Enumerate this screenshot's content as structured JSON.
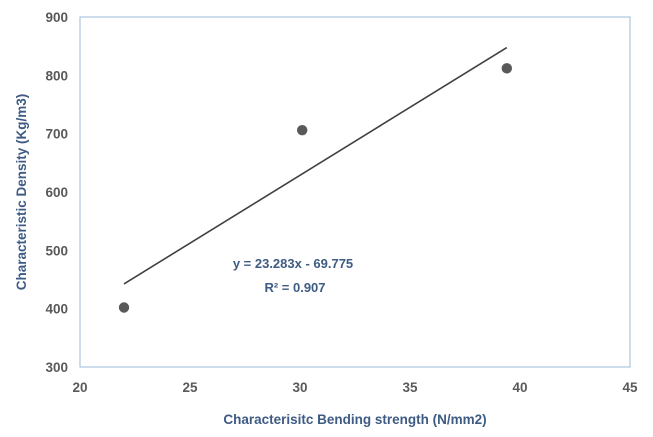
{
  "chart_data": {
    "type": "scatter",
    "title": "",
    "xlabel": "Characterisitc Bending strength (N/mm2)",
    "ylabel": "Characteristic Density (Kg/m3)",
    "xlim": [
      20,
      45
    ],
    "ylim": [
      300,
      900
    ],
    "xticks": [
      20,
      25,
      30,
      35,
      40,
      45
    ],
    "yticks": [
      300,
      400,
      500,
      600,
      700,
      800,
      900
    ],
    "grid": false,
    "legend": "none",
    "series": [
      {
        "points": [
          {
            "x": 22.0,
            "y": 402
          },
          {
            "x": 30.1,
            "y": 706
          },
          {
            "x": 39.4,
            "y": 812
          }
        ]
      }
    ],
    "trendline": {
      "type": "linear",
      "slope": 23.283,
      "intercept": -69.775,
      "x_range": [
        22.0,
        39.4
      ],
      "equation": "y = 23.283x - 69.775",
      "r_squared": "R² = 0.907"
    },
    "colors": {
      "marker": "#595959",
      "line": "#404040",
      "axis_text": "#595959",
      "title_text": "#3e5b84",
      "frame": "#9bbbd9"
    }
  }
}
